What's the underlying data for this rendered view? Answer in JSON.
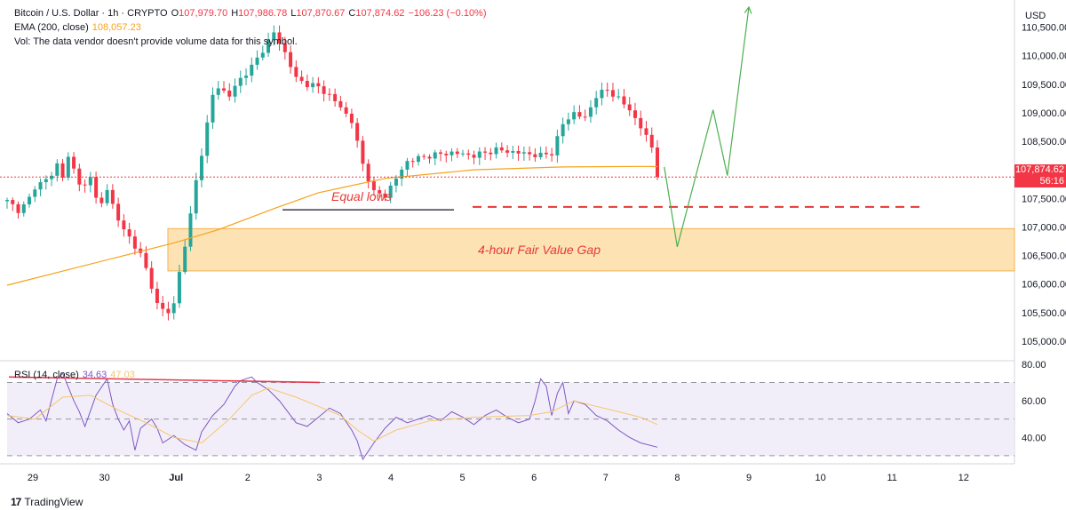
{
  "header": {
    "symbol": "Bitcoin / U.S. Dollar · 1h · CRYPTO",
    "open_label": "O",
    "open": "107,979.70",
    "high_label": "H",
    "high": "107,986.78",
    "low_label": "L",
    "low": "107,870.67",
    "close_label": "C",
    "close": "107,874.62",
    "change": "−106.23 (−0.10%)",
    "ema_label": "EMA (200, close)",
    "ema_value": "108,057.23",
    "vol_text": "Vol: The data vendor doesn't provide volume data for this symbol."
  },
  "price_scale": {
    "currency": "USD",
    "current_price": "107,874.62",
    "countdown": "56:16"
  },
  "rsi_header": {
    "label": "RSI (14, close)",
    "rsi_value": "34.63",
    "ma_value": "47.03"
  },
  "annotations": {
    "equal_lows": "Equal lows",
    "fvg": "4-hour Fair Value Gap"
  },
  "footer": {
    "brand": "TradingView"
  },
  "colors": {
    "up": "#26a69a",
    "down": "#f23645",
    "ema": "#f7a21b",
    "rsi": "#7e57c2",
    "rsi_ma": "#f7c56b",
    "fvg_fill": "#fde3b4",
    "fvg_border": "#f5b04a",
    "projection": "#4caf50",
    "annotation": "#e53935"
  },
  "chart_data": [
    {
      "type": "candlestick",
      "title": "Bitcoin / U.S. Dollar · 1h · CRYPTO",
      "x_tick_labels": [
        "29",
        "30",
        "Jul",
        "2",
        "3",
        "4",
        "5",
        "6",
        "7",
        "8",
        "9",
        "10",
        "11",
        "12"
      ],
      "y_tick_labels": [
        "110,500.00",
        "110,000.00",
        "109,500.00",
        "109,000.00",
        "108,500.00",
        "108,000.00",
        "107,500.00",
        "107,000.00",
        "106,500.00",
        "106,000.00",
        "105,500.00",
        "105,000.00"
      ],
      "ylim": [
        104750,
        110850
      ],
      "grid": false,
      "price_path": [
        [
          0,
          107450
        ],
        [
          2,
          107300
        ],
        [
          3.5,
          107400
        ],
        [
          5,
          107700
        ],
        [
          6.5,
          107800
        ],
        [
          8,
          107900
        ],
        [
          9,
          108100
        ],
        [
          10,
          107900
        ],
        [
          11,
          108200
        ],
        [
          12,
          108000
        ],
        [
          13,
          107800
        ],
        [
          14,
          107700
        ],
        [
          15,
          107850
        ],
        [
          16,
          107550
        ],
        [
          17,
          107400
        ],
        [
          18,
          107650
        ],
        [
          19,
          107400
        ],
        [
          20,
          107100
        ],
        [
          21,
          107000
        ],
        [
          22,
          106800
        ],
        [
          23,
          106600
        ],
        [
          23.5,
          106800
        ],
        [
          24,
          106600
        ],
        [
          25,
          106250
        ],
        [
          26,
          105900
        ],
        [
          27,
          105700
        ],
        [
          28,
          105550
        ],
        [
          29,
          105500
        ],
        [
          30,
          105650
        ],
        [
          31,
          106200
        ],
        [
          32,
          106700
        ],
        [
          33,
          107200
        ],
        [
          34,
          107800
        ],
        [
          35,
          108300
        ],
        [
          36,
          108800
        ],
        [
          37,
          109300
        ],
        [
          38,
          109450
        ],
        [
          40,
          109300
        ],
        [
          42,
          109600
        ],
        [
          44,
          109800
        ],
        [
          46,
          110100
        ],
        [
          48,
          110400
        ],
        [
          50,
          110050
        ],
        [
          52,
          109600
        ],
        [
          54,
          109500
        ],
        [
          56,
          109450
        ],
        [
          58,
          109300
        ],
        [
          60,
          109100
        ],
        [
          62,
          108850
        ],
        [
          64,
          108100
        ],
        [
          66,
          107600
        ],
        [
          68,
          107550
        ],
        [
          70,
          107850
        ],
        [
          72,
          108150
        ],
        [
          76,
          108250
        ],
        [
          80,
          108300
        ],
        [
          84,
          108250
        ],
        [
          88,
          108350
        ],
        [
          92,
          108300
        ],
        [
          96,
          108250
        ],
        [
          98,
          108300
        ],
        [
          100,
          108800
        ],
        [
          102,
          109000
        ],
        [
          104,
          108900
        ],
        [
          106,
          109300
        ],
        [
          108,
          109400
        ],
        [
          110,
          109250
        ],
        [
          112,
          109050
        ],
        [
          114,
          108750
        ],
        [
          116,
          108400
        ],
        [
          117,
          107880
        ]
      ],
      "ema_200": [
        [
          0,
          105980
        ],
        [
          30,
          106720
        ],
        [
          38,
          106950
        ],
        [
          48,
          107320
        ],
        [
          56,
          107600
        ],
        [
          68,
          107850
        ],
        [
          84,
          108000
        ],
        [
          100,
          108050
        ],
        [
          114,
          108060
        ],
        [
          117,
          108057
        ]
      ],
      "equal_lows_level": 107300,
      "projected_sell_level": 107350,
      "fvg_zone": [
        106230,
        106970
      ],
      "projection_path": [
        [
          "7",
          108050
        ],
        [
          "8",
          106650
        ],
        [
          "8.5",
          109050
        ],
        [
          "8.7",
          107900
        ],
        [
          "9",
          110850
        ]
      ],
      "current_price": 107874.62
    },
    {
      "type": "line",
      "title": "RSI (14, close)",
      "y_tick_labels": [
        "80.00",
        "60.00",
        "40.00"
      ],
      "ylim": [
        28,
        78
      ],
      "bands": [
        30,
        50,
        70
      ],
      "series": [
        {
          "name": "RSI",
          "values_path": [
            [
              0,
              53
            ],
            [
              2,
              48
            ],
            [
              4,
              50
            ],
            [
              6,
              55
            ],
            [
              7,
              49
            ],
            [
              9,
              72
            ],
            [
              10,
              75
            ],
            [
              12,
              60
            ],
            [
              13,
              54
            ],
            [
              14,
              46
            ],
            [
              16,
              63
            ],
            [
              18,
              72
            ],
            [
              19,
              58
            ],
            [
              20,
              50
            ],
            [
              21,
              44
            ],
            [
              22,
              49
            ],
            [
              23,
              33
            ],
            [
              24,
              45
            ],
            [
              26,
              50
            ],
            [
              27,
              45
            ],
            [
              28,
              37
            ],
            [
              30,
              41
            ],
            [
              32,
              36
            ],
            [
              34,
              33
            ],
            [
              35,
              43
            ],
            [
              37,
              52
            ],
            [
              39,
              58
            ],
            [
              41,
              68
            ],
            [
              42,
              71
            ],
            [
              44,
              73
            ],
            [
              45,
              70
            ],
            [
              47,
              66
            ],
            [
              49,
              60
            ],
            [
              50,
              56
            ],
            [
              52,
              48
            ],
            [
              54,
              46
            ],
            [
              56,
              51
            ],
            [
              58,
              56
            ],
            [
              60,
              53
            ],
            [
              62,
              44
            ],
            [
              63,
              38
            ],
            [
              64,
              28
            ],
            [
              66,
              37
            ],
            [
              68,
              45
            ],
            [
              70,
              51
            ],
            [
              72,
              48
            ],
            [
              74,
              50
            ],
            [
              76,
              52
            ],
            [
              78,
              49
            ],
            [
              80,
              54
            ],
            [
              82,
              51
            ],
            [
              84,
              47
            ],
            [
              86,
              52
            ],
            [
              88,
              55
            ],
            [
              90,
              51
            ],
            [
              92,
              48
            ],
            [
              94,
              50
            ],
            [
              95,
              60
            ],
            [
              96,
              72
            ],
            [
              97,
              68
            ],
            [
              98,
              52
            ],
            [
              99,
              64
            ],
            [
              100,
              70
            ],
            [
              101,
              53
            ],
            [
              102,
              60
            ],
            [
              104,
              58
            ],
            [
              106,
              52
            ],
            [
              108,
              49
            ],
            [
              110,
              44
            ],
            [
              112,
              40
            ],
            [
              114,
              37
            ],
            [
              117,
              34.63
            ]
          ]
        },
        {
          "name": "RSI-based MA",
          "values_path": [
            [
              0,
              52
            ],
            [
              5,
              50
            ],
            [
              10,
              62
            ],
            [
              15,
              63
            ],
            [
              20,
              55
            ],
            [
              25,
              48
            ],
            [
              30,
              40
            ],
            [
              35,
              37
            ],
            [
              40,
              50
            ],
            [
              44,
              63
            ],
            [
              47,
              67
            ],
            [
              52,
              62
            ],
            [
              56,
              57
            ],
            [
              60,
              52
            ],
            [
              63,
              44
            ],
            [
              66,
              38
            ],
            [
              70,
              44
            ],
            [
              76,
              49
            ],
            [
              84,
              51
            ],
            [
              94,
              52
            ],
            [
              98,
              54
            ],
            [
              102,
              60
            ],
            [
              106,
              57
            ],
            [
              110,
              54
            ],
            [
              114,
              51
            ],
            [
              117,
              47.03
            ]
          ]
        }
      ],
      "trendline": [
        [
          0,
          73
        ],
        [
          21,
          70
        ]
      ]
    }
  ]
}
